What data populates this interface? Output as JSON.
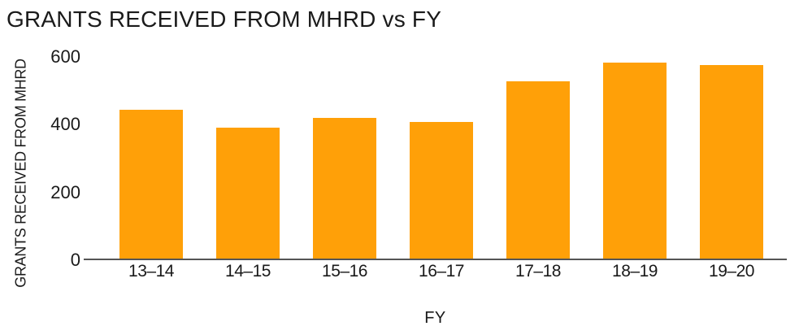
{
  "chart_data": {
    "type": "bar",
    "title": "GRANTS RECEIVED FROM MHRD vs FY",
    "xlabel": "FY",
    "ylabel": "GRANTS RECEIVED FROM MHRD",
    "categories": [
      "13–14",
      "14–15",
      "15–16",
      "16–17",
      "17–18",
      "18–19",
      "19–20"
    ],
    "values": [
      445,
      392,
      420,
      409,
      529,
      583,
      577
    ],
    "yticks": [
      0,
      200,
      400,
      600
    ],
    "ylim": [
      0,
      600
    ],
    "grid": false,
    "legend": "none",
    "bar_color": "#FFA008",
    "axis_color": "#555555",
    "text_color": "#1a1a1a",
    "background_color": "#FFFFFF"
  }
}
